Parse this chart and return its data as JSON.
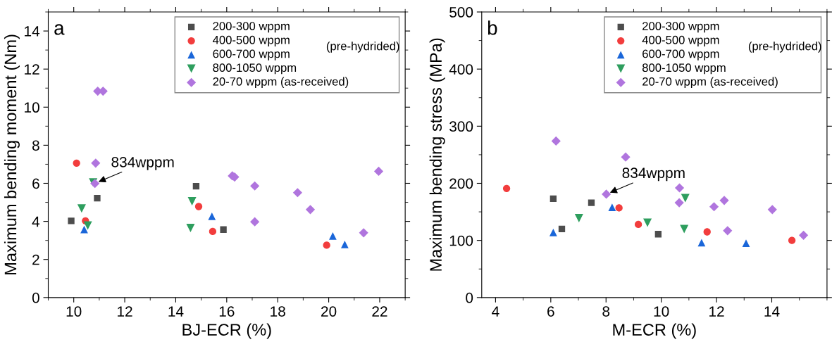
{
  "chart_data": [
    {
      "type": "scatter",
      "title": "a",
      "xlabel": "BJ-ECR (%)",
      "ylabel": "Maximum bending moment (Nm)",
      "xlim": [
        9,
        23
      ],
      "xticks": [
        10,
        12,
        14,
        16,
        18,
        20,
        22
      ],
      "ylim": [
        0,
        15
      ],
      "yticks": [
        0,
        2,
        4,
        6,
        8,
        10,
        12,
        14
      ],
      "legend": "top right",
      "grid": false,
      "annotations": [
        {
          "text": "834wppm",
          "x": 10.83,
          "y": 6.0
        },
        "(pre-hydrided)"
      ],
      "series": [
        {
          "name": "200-300 wppm",
          "color": "#4d4d4d",
          "marker": "square",
          "x": [
            9.9,
            10.92,
            14.8,
            15.87
          ],
          "values": [
            4.03,
            5.22,
            5.85,
            3.57
          ]
        },
        {
          "name": "400-500 wppm",
          "color": "#f23d3d",
          "marker": "circle",
          "x": [
            10.11,
            10.46,
            14.9,
            15.45,
            19.92
          ],
          "values": [
            7.06,
            4.03,
            4.78,
            3.47,
            2.75
          ]
        },
        {
          "name": "600-700 wppm",
          "color": "#1a66d9",
          "marker": "triangle",
          "x": [
            10.41,
            15.42,
            20.16,
            20.63
          ],
          "values": [
            3.57,
            4.27,
            3.23,
            2.79
          ]
        },
        {
          "name": "800-1050 wppm",
          "color": "#2e9e5e",
          "marker": "triangle_down",
          "x": [
            10.31,
            10.55,
            14.64,
            14.58,
            10.76
          ],
          "values": [
            4.68,
            3.78,
            5.06,
            3.65,
            6.05
          ]
        },
        {
          "name": "20-70 wppm (as-received)",
          "color": "#b075de",
          "marker": "diamond",
          "x": [
            10.94,
            11.15,
            10.86,
            10.83,
            16.22,
            16.31,
            17.1,
            17.1,
            18.78,
            19.28,
            21.37,
            21.96
          ],
          "values": [
            10.84,
            10.84,
            7.06,
            5.99,
            6.39,
            6.33,
            5.86,
            3.98,
            5.51,
            4.62,
            3.4,
            6.63
          ]
        }
      ]
    },
    {
      "type": "scatter",
      "title": "b",
      "xlabel": "M-ECR (%)",
      "ylabel": "Maximum bending stress (MPa)",
      "xlim": [
        3.5,
        16
      ],
      "xticks": [
        4,
        6,
        8,
        10,
        12,
        14
      ],
      "ylim": [
        0,
        500
      ],
      "yticks": [
        0,
        100,
        200,
        300,
        400,
        500
      ],
      "legend": "top right",
      "grid": false,
      "annotations": [
        {
          "text": "834wppm",
          "x": 8.01,
          "y": 181
        },
        "(pre-hydrided)"
      ],
      "series": [
        {
          "name": "200-300 wppm",
          "color": "#4d4d4d",
          "marker": "square",
          "x": [
            6.09,
            6.4,
            7.47,
            9.89
          ],
          "values": [
            173,
            120,
            166,
            111
          ]
        },
        {
          "name": "400-500 wppm",
          "color": "#f23d3d",
          "marker": "circle",
          "x": [
            4.4,
            8.47,
            9.17,
            11.66,
            14.73
          ],
          "values": [
            191,
            157,
            128,
            115,
            100
          ]
        },
        {
          "name": "600-700 wppm",
          "color": "#1a66d9",
          "marker": "triangle",
          "x": [
            6.09,
            8.22,
            11.46,
            13.07
          ],
          "values": [
            114,
            158,
            96,
            95
          ]
        },
        {
          "name": "800-1050 wppm",
          "color": "#2e9e5e",
          "marker": "triangle_down",
          "x": [
            7.02,
            9.5,
            10.87,
            10.83
          ],
          "values": [
            139,
            131,
            174,
            120
          ]
        },
        {
          "name": "20-70 wppm (as-received)",
          "color": "#b075de",
          "marker": "diamond",
          "x": [
            6.19,
            8.71,
            8.01,
            10.66,
            10.65,
            11.91,
            12.28,
            12.4,
            14.02,
            15.15
          ],
          "values": [
            274,
            246,
            181,
            192,
            166,
            159,
            170,
            117,
            154,
            109
          ]
        }
      ]
    }
  ]
}
